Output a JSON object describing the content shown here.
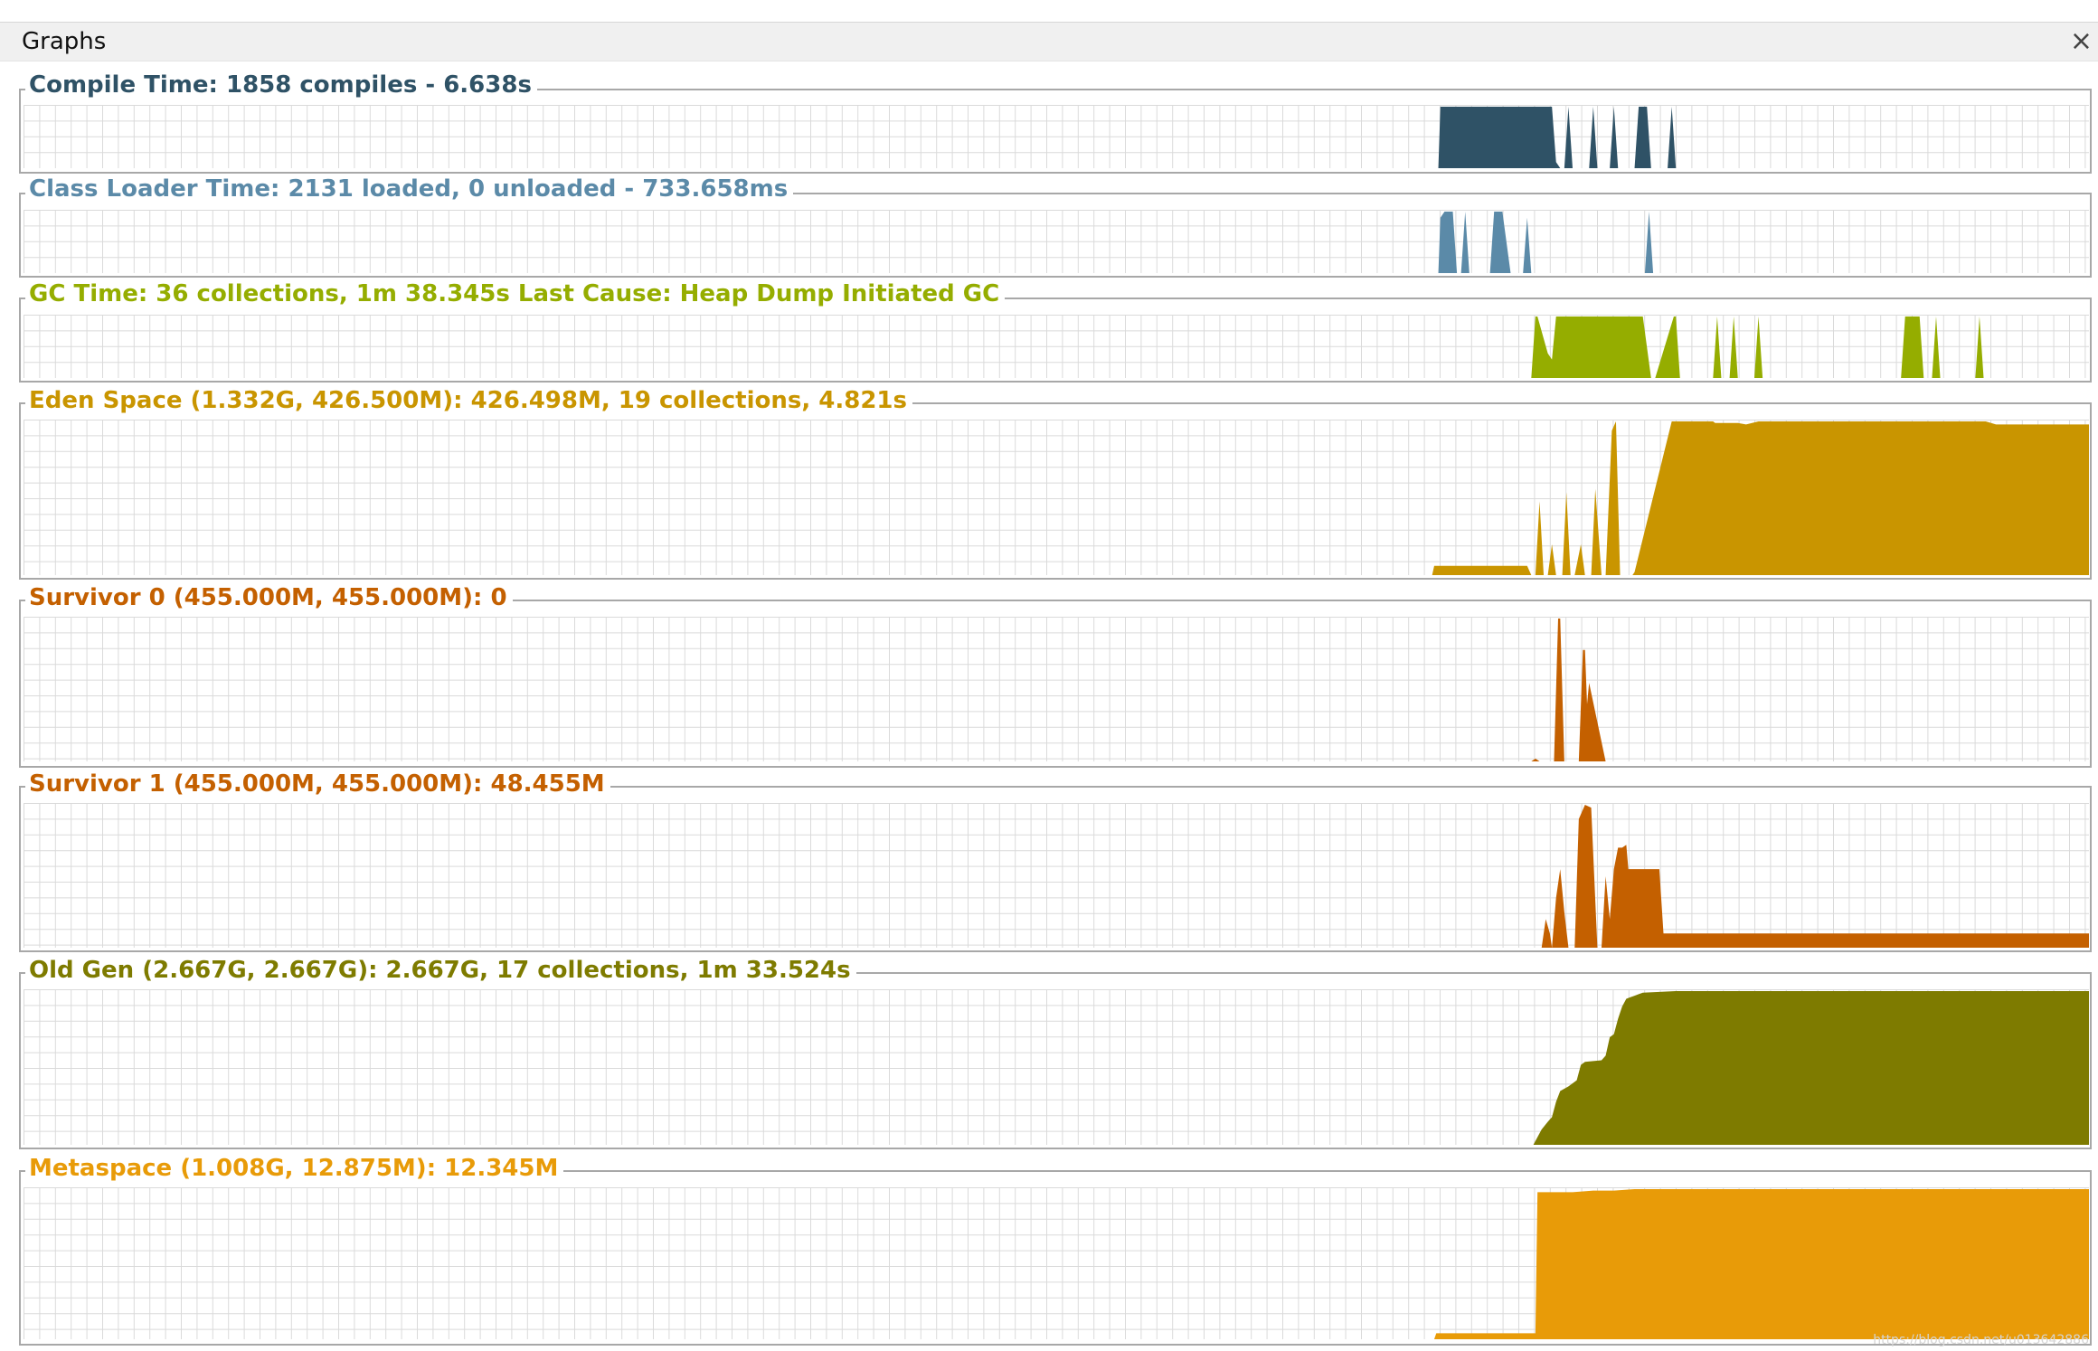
{
  "window": {
    "title": "Graphs",
    "close_label": "×"
  },
  "watermark": "https://blog.csdn.net/u013642886",
  "chart_data": [
    {
      "type": "area",
      "title": "Compile Time: 1858 compiles - 6.638s",
      "color": "#2f5266",
      "xlabel": "",
      "ylabel": "",
      "grid": true,
      "x": [
        0,
        685,
        686,
        688,
        740,
        742,
        744,
        746,
        748,
        750,
        752,
        758,
        760,
        762,
        768,
        770,
        772,
        780,
        782,
        786,
        788,
        796,
        798,
        800,
        804,
        806,
        1000
      ],
      "y": [
        0,
        0,
        1,
        1,
        1,
        0.1,
        0,
        0,
        1,
        0,
        0,
        0,
        1,
        0,
        0,
        1,
        0,
        0,
        1,
        1,
        0,
        0,
        1,
        0,
        0,
        0,
        0
      ]
    },
    {
      "type": "area",
      "title": "Class Loader Time: 2131 loaded, 0 unloaded - 733.658ms",
      "color": "#5b8aa8",
      "xlabel": "",
      "ylabel": "",
      "grid": true,
      "x": [
        0,
        685,
        686,
        688,
        692,
        694,
        696,
        698,
        700,
        702,
        710,
        712,
        716,
        720,
        724,
        726,
        728,
        730,
        785,
        787,
        789,
        1000
      ],
      "y": [
        0,
        0,
        0.9,
        1,
        1,
        0,
        0,
        1,
        0,
        0,
        0,
        1,
        1,
        0,
        0,
        0,
        0.9,
        0,
        0,
        1,
        0,
        0
      ]
    },
    {
      "type": "area",
      "title": "GC Time: 36 collections, 1m 38.345s  Last Cause: Heap Dump Initiated GC",
      "color": "#95ad00",
      "xlabel": "",
      "ylabel": "",
      "grid": true,
      "x": [
        0,
        730,
        732,
        733,
        738,
        740,
        742,
        784,
        788,
        790,
        799,
        800,
        802,
        807,
        808,
        810,
        818,
        820,
        822,
        826,
        828,
        830,
        838,
        840,
        842,
        909,
        911,
        915,
        918,
        920,
        924,
        926,
        928,
        945,
        947,
        949,
        1000
      ],
      "y": [
        0,
        0,
        1,
        1,
        0.4,
        0.3,
        1,
        1,
        0,
        0,
        1,
        1,
        0,
        0,
        0,
        0,
        0,
        1,
        0,
        0,
        1,
        0,
        0,
        1,
        0,
        0,
        1,
        1,
        1,
        0,
        0,
        1,
        0,
        0,
        1,
        0,
        0
      ]
    },
    {
      "type": "area",
      "title": "Eden Space (1.332G, 426.500M): 426.498M, 19 collections, 4.821s",
      "color": "#c99500",
      "xlabel": "",
      "ylabel": "",
      "grid": true,
      "x": [
        0,
        682,
        683,
        728,
        730,
        732,
        734,
        736,
        738,
        740,
        742,
        745,
        747,
        749,
        751,
        754,
        756,
        759,
        761,
        764,
        766,
        769,
        771,
        773,
        775,
        779,
        780,
        798,
        799,
        800,
        818,
        819,
        830,
        834,
        840,
        900,
        950,
        955,
        1000
      ],
      "y": [
        0,
        0,
        0.06,
        0.06,
        0,
        0,
        0.48,
        0,
        0,
        0.2,
        0,
        0,
        0.54,
        0,
        0,
        0.2,
        0,
        0,
        0.56,
        0,
        0,
        0.94,
        1,
        0,
        0,
        0,
        0.02,
        1,
        1,
        1,
        1,
        0.99,
        0.99,
        0.98,
        1,
        1,
        1,
        0.98,
        0.98
      ]
    },
    {
      "type": "area",
      "title": "Survivor 0 (455.000M, 455.000M): 0",
      "color": "#c46000",
      "xlabel": "",
      "ylabel": "",
      "grid": true,
      "x": [
        0,
        730,
        732,
        734,
        736,
        741,
        743,
        744,
        746,
        748,
        753,
        755,
        756,
        757,
        758,
        766,
        768,
        1000
      ],
      "y": [
        0,
        0,
        0.02,
        0,
        0,
        0,
        1,
        1,
        0,
        0,
        0,
        0.78,
        0.78,
        0.4,
        0.55,
        0,
        0,
        0
      ]
    },
    {
      "type": "area",
      "title": "Survivor 1 (455.000M, 455.000M): 48.455M",
      "color": "#c46000",
      "xlabel": "",
      "ylabel": "",
      "grid": true,
      "x": [
        0,
        735,
        737,
        739,
        740,
        742,
        744,
        746,
        748,
        751,
        753,
        756,
        759,
        762,
        764,
        766,
        768,
        770,
        772,
        774,
        776,
        777,
        784,
        789,
        792,
        794,
        801,
        802,
        1000
      ],
      "y": [
        0,
        0,
        0.2,
        0.1,
        0,
        0.35,
        0.55,
        0.25,
        0,
        0,
        0.9,
        1,
        0.98,
        0,
        0,
        0.5,
        0.2,
        0.55,
        0.7,
        0.7,
        0.72,
        0.55,
        0.55,
        0.55,
        0.55,
        0.1,
        0.1,
        0.1,
        0.1
      ]
    },
    {
      "type": "area",
      "title": "Old Gen (2.667G, 2.667G): 2.667G, 17 collections, 1m 33.524s",
      "color": "#7e7b00",
      "xlabel": "",
      "ylabel": "",
      "grid": true,
      "x": [
        0,
        731,
        735,
        738,
        740,
        742,
        744,
        748,
        752,
        754,
        756,
        764,
        766,
        768,
        770,
        772,
        774,
        776,
        778,
        780,
        782,
        784,
        800,
        820,
        1000
      ],
      "y": [
        0,
        0,
        0.1,
        0.15,
        0.18,
        0.28,
        0.35,
        0.38,
        0.42,
        0.52,
        0.54,
        0.55,
        0.58,
        0.7,
        0.72,
        0.82,
        0.9,
        0.95,
        0.96,
        0.97,
        0.98,
        0.99,
        1,
        1,
        1
      ]
    },
    {
      "type": "area",
      "title": "Metaspace (1.008G, 12.875M): 12.345M",
      "color": "#e89b08",
      "xlabel": "",
      "ylabel": "",
      "grid": true,
      "x": [
        0,
        683,
        684,
        728,
        730,
        732,
        733,
        735,
        740,
        750,
        760,
        770,
        780,
        900,
        1000
      ],
      "y": [
        0,
        0,
        0.04,
        0.04,
        0.04,
        0.04,
        0.98,
        0.98,
        0.98,
        0.98,
        0.99,
        0.99,
        1,
        1,
        1
      ]
    }
  ]
}
